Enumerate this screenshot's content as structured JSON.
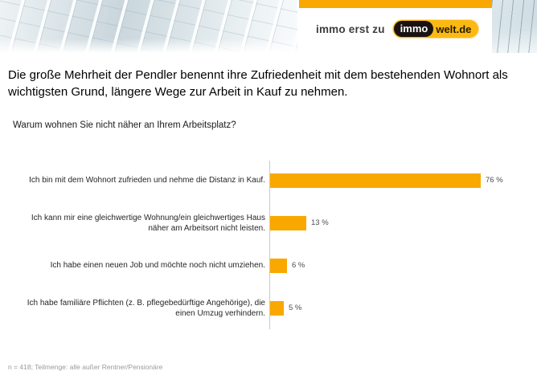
{
  "header": {
    "tagline": "immo erst zu",
    "logo": {
      "dark_part": "immo",
      "light_part": "welt.de"
    },
    "accent_color": "#F9A800",
    "logo_yellow": "#FDB913"
  },
  "headline": "Die große Mehrheit der Pendler benennt ihre Zufriedenheit mit dem bestehenden Wohnort als wichtigsten Grund, längere Wege zur Arbeit in Kauf zu nehmen.",
  "question": "Warum wohnen Sie nicht näher an Ihrem Arbeitsplatz?",
  "chart_data": {
    "type": "bar",
    "orientation": "horizontal",
    "title": "Warum wohnen Sie nicht näher an Ihrem Arbeitsplatz?",
    "categories": [
      "Ich bin mit dem Wohnort zufrieden und nehme die Distanz in Kauf.",
      "Ich kann mir eine gleichwertige Wohnung/ein gleichwertiges Haus näher am Arbeitsort nicht leisten.",
      "Ich habe einen neuen Job und möchte noch nicht umziehen.",
      "Ich habe familiäre Pflichten (z. B. pflegebedürftige Angehörige), die einen Umzug verhindern."
    ],
    "values": [
      76,
      13,
      6,
      5
    ],
    "value_labels": [
      "76 %",
      "13 %",
      "6 %",
      "5 %"
    ],
    "bar_color": "#F9A800",
    "xlabel": "",
    "ylabel": "",
    "xlim": [
      0,
      100
    ],
    "grid": false,
    "legend": "none"
  },
  "footnote": "n = 418; Teilmenge: alle außer Rentner/Pensionäre"
}
